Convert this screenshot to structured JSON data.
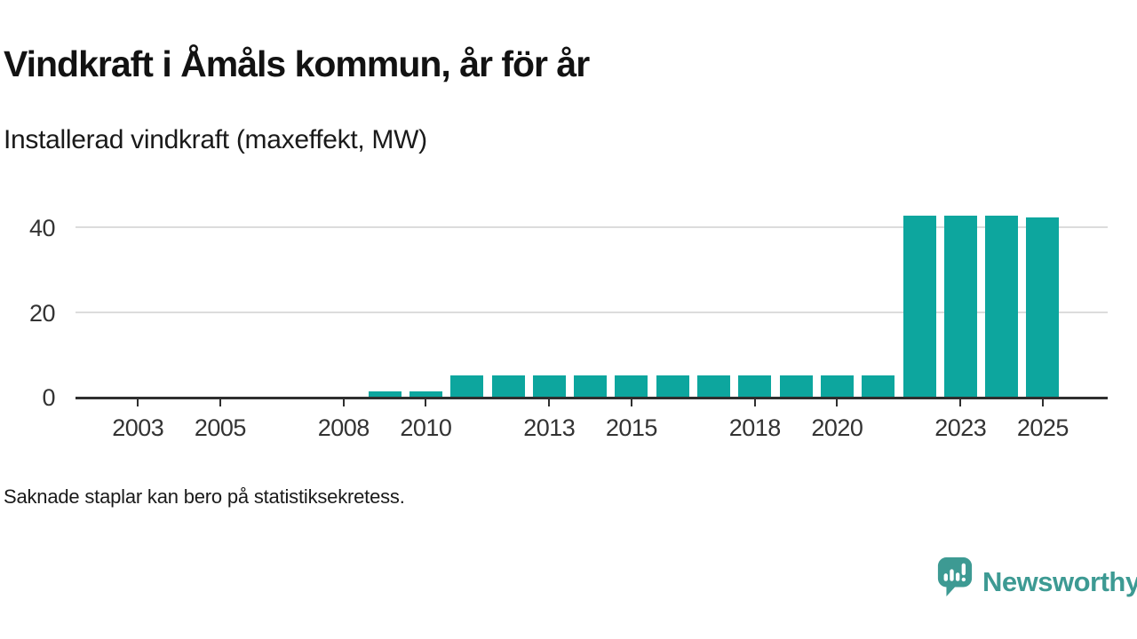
{
  "header": {
    "title": "Vindkraft i Åmåls kommun, år för år",
    "subtitle": "Installerad vindkraft (maxeffekt, MW)"
  },
  "footer": {
    "note": "Saknade staplar kan bero på statistiksekretess."
  },
  "branding": {
    "wordmark": "Newsworthy",
    "icon": "newsworthy-speech-bubble-barchart-icon",
    "color": "#3d9a93"
  },
  "colors": {
    "bar": "#0da69e",
    "gridline": "#dcdcdc",
    "axis": "#2f2f2f",
    "text": "#1a1a1a",
    "tick_text": "#333333"
  },
  "chart_data": {
    "type": "bar",
    "title": "Vindkraft i Åmåls kommun, år för år",
    "subtitle": "Installerad vindkraft (maxeffekt, MW)",
    "xlabel": "",
    "ylabel": "Installerad vindkraft (maxeffekt, MW)",
    "unit": "MW",
    "categories": [
      2002,
      2003,
      2004,
      2005,
      2006,
      2007,
      2008,
      2009,
      2010,
      2011,
      2012,
      2013,
      2014,
      2015,
      2016,
      2017,
      2018,
      2019,
      2020,
      2021,
      2022,
      2023,
      2024,
      2025
    ],
    "values": [
      null,
      null,
      null,
      null,
      null,
      null,
      null,
      1.2,
      1.2,
      5,
      5,
      5,
      5,
      5,
      5,
      5,
      5,
      5,
      5,
      5,
      42.8,
      42.8,
      42.8,
      42.2
    ],
    "missing_values_meaning": "Saknade staplar kan bero på statistiksekretess.",
    "y_ticks": [
      0,
      20,
      40
    ],
    "x_ticks": [
      2003,
      2005,
      2008,
      2010,
      2013,
      2015,
      2018,
      2020,
      2023,
      2025
    ],
    "ylim": [
      0,
      40
    ],
    "grid": "horizontal",
    "legend": "none",
    "bar_color": "#0da69e"
  }
}
